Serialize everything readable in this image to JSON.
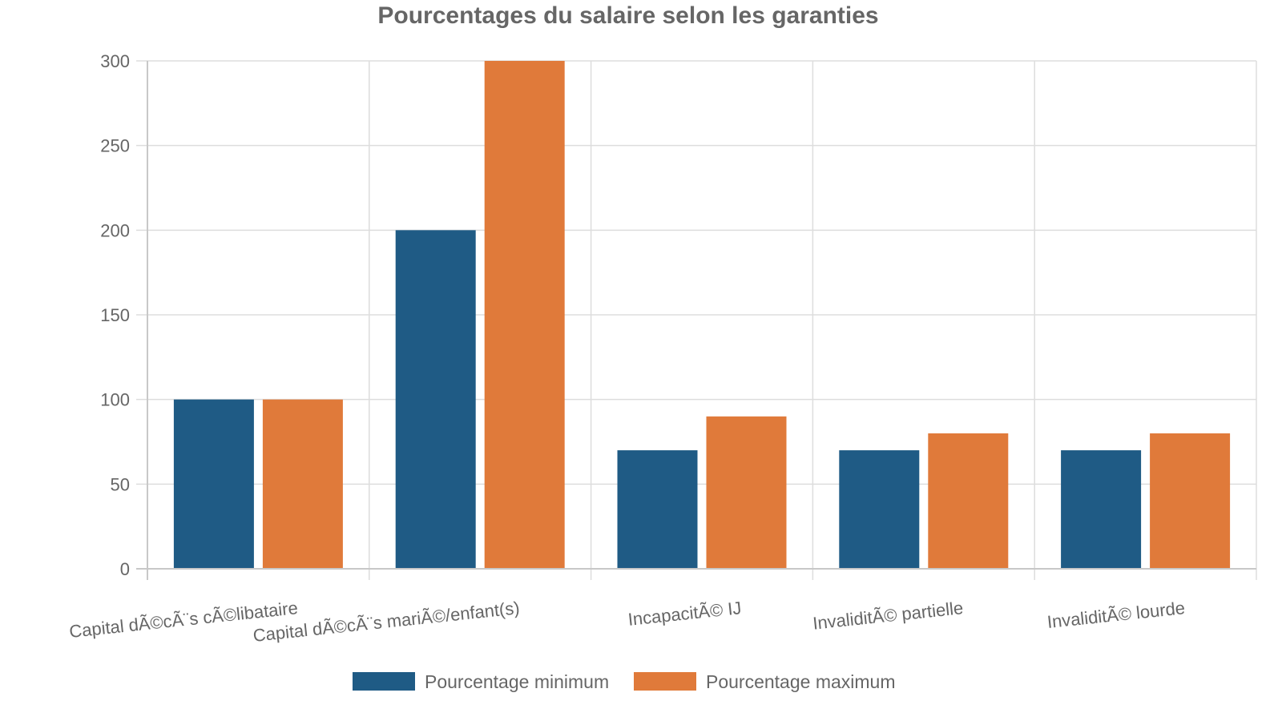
{
  "chart_data": {
    "type": "bar",
    "title": "Pourcentages du salaire selon les garanties",
    "xlabel": "",
    "ylabel": "",
    "ylim": [
      0,
      300
    ],
    "yticks": [
      0,
      50,
      100,
      150,
      200,
      250,
      300
    ],
    "categories": [
      "Capital dÃ©cÃ¨s cÃ©libataire",
      "Capital dÃ©cÃ¨s mariÃ©/enfant(s)",
      "IncapacitÃ© IJ",
      "InvaliditÃ© partielle",
      "InvaliditÃ© lourde"
    ],
    "series": [
      {
        "name": "Pourcentage minimum",
        "color": "#1f5b85",
        "values": [
          100,
          200,
          70,
          70,
          70
        ]
      },
      {
        "name": "Pourcentage maximum",
        "color": "#e07a3a",
        "values": [
          100,
          300,
          90,
          80,
          80
        ]
      }
    ],
    "grid": true,
    "legend_position": "bottom"
  }
}
